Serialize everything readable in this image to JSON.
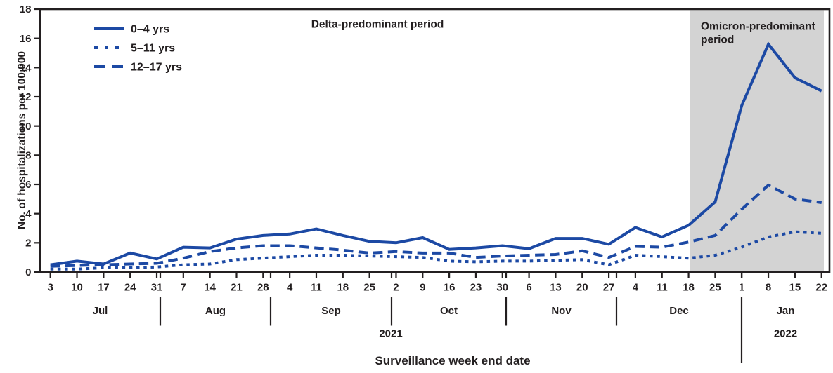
{
  "figure": {
    "delta_period_label": "Delta-predominant period",
    "omicron_period_label_line1": "Omicron-predominant",
    "omicron_period_label_line2": "period",
    "x_axis_title": "Surveillance week end date",
    "y_axis_title": "No. of hospitalizations per 100,000"
  },
  "legend": {
    "items": [
      {
        "label": "0–4 yrs",
        "line_style": "solid"
      },
      {
        "label": "5–11 yrs",
        "line_style": "dotted"
      },
      {
        "label": "12–17 yrs",
        "line_style": "dashed"
      }
    ]
  },
  "colors": {
    "line_blue": "#1c49a4",
    "shaded_band": "#d3d3d3",
    "ink": "#231f20",
    "background": "#ffffff"
  },
  "chart_data": {
    "type": "line",
    "title": "",
    "x_axis_label": "Surveillance week end date",
    "y_axis_label": "No. of hospitalizations per 100,000",
    "ylim": [
      0,
      18
    ],
    "y_ticks": [
      0,
      2,
      4,
      6,
      8,
      10,
      12,
      14,
      16,
      18
    ],
    "grid": false,
    "legend_position": "top-left-inside",
    "months": [
      {
        "label": "Jul",
        "year": "2021",
        "week_end_days": [
          "3",
          "10",
          "17",
          "24",
          "31"
        ]
      },
      {
        "label": "Aug",
        "year": "2021",
        "week_end_days": [
          "7",
          "14",
          "21",
          "28"
        ]
      },
      {
        "label": "Sep",
        "year": "2021",
        "week_end_days": [
          "4",
          "11",
          "18",
          "25"
        ]
      },
      {
        "label": "Oct",
        "year": "2021",
        "week_end_days": [
          "2",
          "9",
          "16",
          "23",
          "30"
        ]
      },
      {
        "label": "Nov",
        "year": "2021",
        "week_end_days": [
          "6",
          "13",
          "20",
          "27"
        ]
      },
      {
        "label": "Dec",
        "year": "2021",
        "week_end_days": [
          "4",
          "11",
          "18",
          "25"
        ]
      },
      {
        "label": "Jan",
        "year": "2022",
        "week_end_days": [
          "1",
          "8",
          "15",
          "22"
        ]
      }
    ],
    "years": [
      {
        "label": "2021",
        "span_months": [
          "Jul",
          "Aug",
          "Sep",
          "Oct",
          "Nov",
          "Dec"
        ]
      },
      {
        "label": "2022",
        "span_months": [
          "Jan"
        ]
      }
    ],
    "series": [
      {
        "name": "0–4 yrs",
        "line_style": "solid",
        "values": [
          0.5,
          0.75,
          0.55,
          1.3,
          0.9,
          1.7,
          1.65,
          2.25,
          2.5,
          2.6,
          2.95,
          2.5,
          2.1,
          2.0,
          2.35,
          1.55,
          1.65,
          1.8,
          1.6,
          2.3,
          2.3,
          1.9,
          3.05,
          2.4,
          3.2,
          4.8,
          11.4,
          15.6,
          13.3,
          12.4
        ]
      },
      {
        "name": "5–11 yrs",
        "line_style": "dotted",
        "values": [
          0.2,
          0.2,
          0.3,
          0.3,
          0.35,
          0.5,
          0.55,
          0.85,
          0.95,
          1.05,
          1.15,
          1.15,
          1.1,
          1.05,
          1.0,
          0.75,
          0.7,
          0.75,
          0.75,
          0.8,
          0.85,
          0.5,
          1.15,
          1.05,
          0.95,
          1.15,
          1.7,
          2.4,
          2.75,
          2.65
        ]
      },
      {
        "name": "12–17 yrs",
        "line_style": "dashed",
        "values": [
          0.4,
          0.45,
          0.5,
          0.55,
          0.6,
          0.95,
          1.4,
          1.65,
          1.8,
          1.8,
          1.65,
          1.5,
          1.3,
          1.4,
          1.3,
          1.3,
          1.0,
          1.1,
          1.15,
          1.2,
          1.45,
          1.0,
          1.75,
          1.7,
          2.05,
          2.5,
          4.3,
          5.95,
          5.0,
          4.75
        ]
      }
    ],
    "annotations": {
      "delta_period_label": "Delta-predominant period",
      "omicron_period_label": "Omicron-predominant period",
      "omicron_shading_starts_at_week": "Dec 18"
    }
  }
}
